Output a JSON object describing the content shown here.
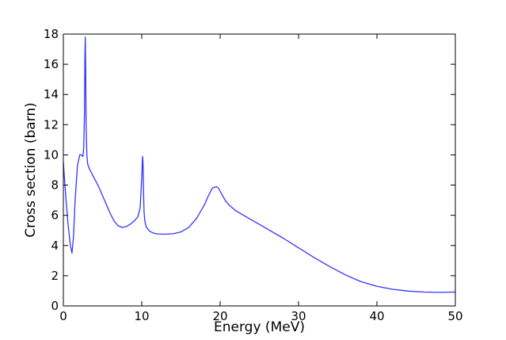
{
  "chart_data": {
    "type": "line",
    "title": "",
    "xlabel": "Energy (MeV)",
    "ylabel": "Cross section (barn)",
    "xlim": [
      0,
      50
    ],
    "ylim": [
      0,
      18
    ],
    "xticks": [
      0,
      10,
      20,
      30,
      40,
      50
    ],
    "yticks": [
      0,
      2,
      4,
      6,
      8,
      10,
      12,
      14,
      16,
      18
    ],
    "grid": false,
    "legend": "none",
    "series": [
      {
        "color": "#3333ff",
        "x": [
          0,
          0.3,
          0.6,
          0.9,
          1.1,
          1.3,
          1.5,
          1.8,
          2.1,
          2.3,
          2.5,
          2.6,
          2.7,
          2.75,
          2.8,
          2.85,
          2.9,
          3.0,
          3.1,
          3.3,
          3.6,
          4.0,
          4.5,
          5.0,
          5.5,
          6.0,
          6.5,
          7.0,
          7.5,
          8.0,
          8.5,
          9.0,
          9.5,
          9.8,
          10.0,
          10.1,
          10.15,
          10.2,
          10.25,
          10.3,
          10.4,
          10.6,
          11.0,
          11.5,
          12.0,
          13.0,
          14.0,
          15.0,
          16.0,
          17.0,
          18.0,
          18.5,
          19.0,
          19.5,
          19.8,
          20.2,
          20.7,
          21.2,
          22.0,
          23.0,
          24.0,
          25.0,
          26.0,
          28.0,
          30.0,
          32.0,
          34.0,
          36.0,
          38.0,
          40.0,
          42.0,
          44.0,
          46.0,
          48.0,
          50.0
        ],
        "y": [
          9.5,
          7.3,
          5.4,
          4.0,
          3.5,
          4.6,
          7.0,
          9.3,
          10.0,
          10.0,
          9.9,
          10.5,
          12.8,
          16.5,
          17.8,
          15.5,
          12.0,
          10.0,
          9.4,
          9.1,
          8.8,
          8.4,
          7.9,
          7.3,
          6.7,
          6.1,
          5.6,
          5.3,
          5.2,
          5.25,
          5.4,
          5.6,
          5.9,
          6.5,
          8.5,
          9.9,
          9.6,
          8.5,
          7.1,
          6.2,
          5.6,
          5.2,
          4.95,
          4.82,
          4.77,
          4.75,
          4.78,
          4.9,
          5.2,
          5.8,
          6.7,
          7.3,
          7.8,
          7.9,
          7.8,
          7.4,
          6.95,
          6.65,
          6.3,
          6.0,
          5.7,
          5.4,
          5.1,
          4.5,
          3.85,
          3.2,
          2.6,
          2.05,
          1.6,
          1.3,
          1.1,
          0.98,
          0.92,
          0.9,
          0.92
        ]
      }
    ]
  }
}
